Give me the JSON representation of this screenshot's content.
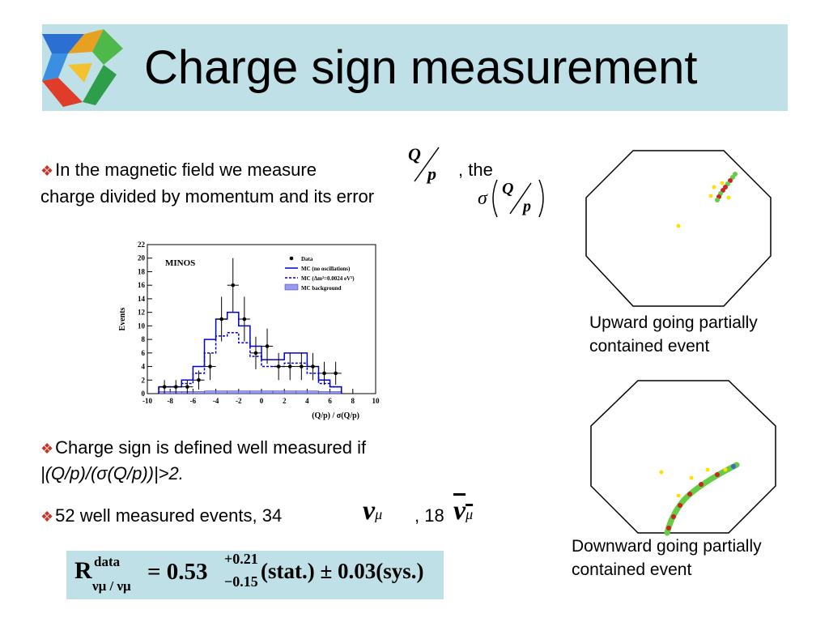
{
  "title": "Charge sign measurement",
  "bullets": {
    "b1_line1": "In the magnetic field we measure",
    "b1_after": ", the",
    "b1_line2": "charge divided by momentum and its error",
    "b2_line1": "Charge sign is defined well measured if",
    "b2_line2": "|(Q/p)/(σ(Q/p))|>2.",
    "b3_text": "52 well measured events, 34",
    "b3_mid": ", 18"
  },
  "math": {
    "q": "Q",
    "p": "p",
    "sigma": "σ",
    "nu": "ν",
    "mu": "μ"
  },
  "formula": {
    "R": "R",
    "sup": "data",
    "sub": "νμ / νμ",
    "eq": "= 0.53",
    "plus": "+0.21",
    "minus": "−0.15",
    "rest": "(stat.) ± 0.03(sys.)"
  },
  "captions": {
    "upward_l1": "Upward going partially",
    "upward_l2": "contained event",
    "downward_l1": "Downward going partially",
    "downward_l2": "contained event"
  },
  "chart_data": {
    "type": "bar",
    "title": "MINOS",
    "ylabel": "Events",
    "xlabel": "(Q/p) / σ(Q/p)",
    "xlim": [
      -10,
      10
    ],
    "ylim": [
      0,
      22
    ],
    "xticks": [
      "-10",
      "-8",
      "-6",
      "-4",
      "-2",
      "0",
      "2",
      "4",
      "6",
      "8",
      "10"
    ],
    "yticks": [
      "0",
      "2",
      "4",
      "6",
      "8",
      "10",
      "12",
      "14",
      "16",
      "18",
      "20",
      "22"
    ],
    "legend": {
      "placement": "top-right",
      "entries": [
        "Data",
        "MC (no oscillations)",
        "MC (Δm²=0.0024 eV²)",
        "MC background"
      ]
    },
    "bin_edges": [
      -9,
      -8,
      -7,
      -6,
      -5,
      -4,
      -3,
      -2,
      -1,
      0,
      1,
      2,
      3,
      4,
      5,
      6,
      7
    ],
    "series": [
      {
        "name": "MC (no oscillations)",
        "style": "solid",
        "color": "#0000cc",
        "values": [
          1,
          1,
          2,
          4,
          8,
          11,
          12,
          10,
          7,
          5,
          5,
          6,
          6,
          4,
          2,
          1
        ]
      },
      {
        "name": "MC (Δm²=0.0024 eV²)",
        "style": "dashed",
        "color": "#0000cc",
        "values": [
          1,
          1,
          1.5,
          3,
          6,
          8.5,
          9,
          7.5,
          5.5,
          4,
          4,
          4.5,
          4.5,
          3,
          1.5,
          1
        ]
      },
      {
        "name": "MC background",
        "style": "fill",
        "color": "#9999ee",
        "values": [
          0.3,
          0.3,
          0.3,
          0.3,
          0.4,
          0.4,
          0.4,
          0.4,
          0.4,
          0.4,
          0.4,
          0.4,
          0.4,
          0.4,
          0.3,
          0.3
        ]
      }
    ],
    "data_points": [
      {
        "x": -8.5,
        "y": 1,
        "err": 1
      },
      {
        "x": -7.5,
        "y": 1,
        "err": 1
      },
      {
        "x": -6.5,
        "y": 1,
        "err": 1
      },
      {
        "x": -5.5,
        "y": 2,
        "err": 1.4
      },
      {
        "x": -4.5,
        "y": 4,
        "err": 2
      },
      {
        "x": -3.5,
        "y": 11,
        "err": 3.3
      },
      {
        "x": -2.5,
        "y": 16,
        "err": 4
      },
      {
        "x": -1.5,
        "y": 11,
        "err": 3.3
      },
      {
        "x": -0.5,
        "y": 6,
        "err": 2.4
      },
      {
        "x": 0.5,
        "y": 7,
        "err": 2.6
      },
      {
        "x": 1.5,
        "y": 4,
        "err": 2
      },
      {
        "x": 2.5,
        "y": 4,
        "err": 2
      },
      {
        "x": 3.5,
        "y": 4,
        "err": 2
      },
      {
        "x": 4.5,
        "y": 4,
        "err": 2
      },
      {
        "x": 5.5,
        "y": 3,
        "err": 1.7
      },
      {
        "x": 6.5,
        "y": 3,
        "err": 1.7
      }
    ]
  }
}
